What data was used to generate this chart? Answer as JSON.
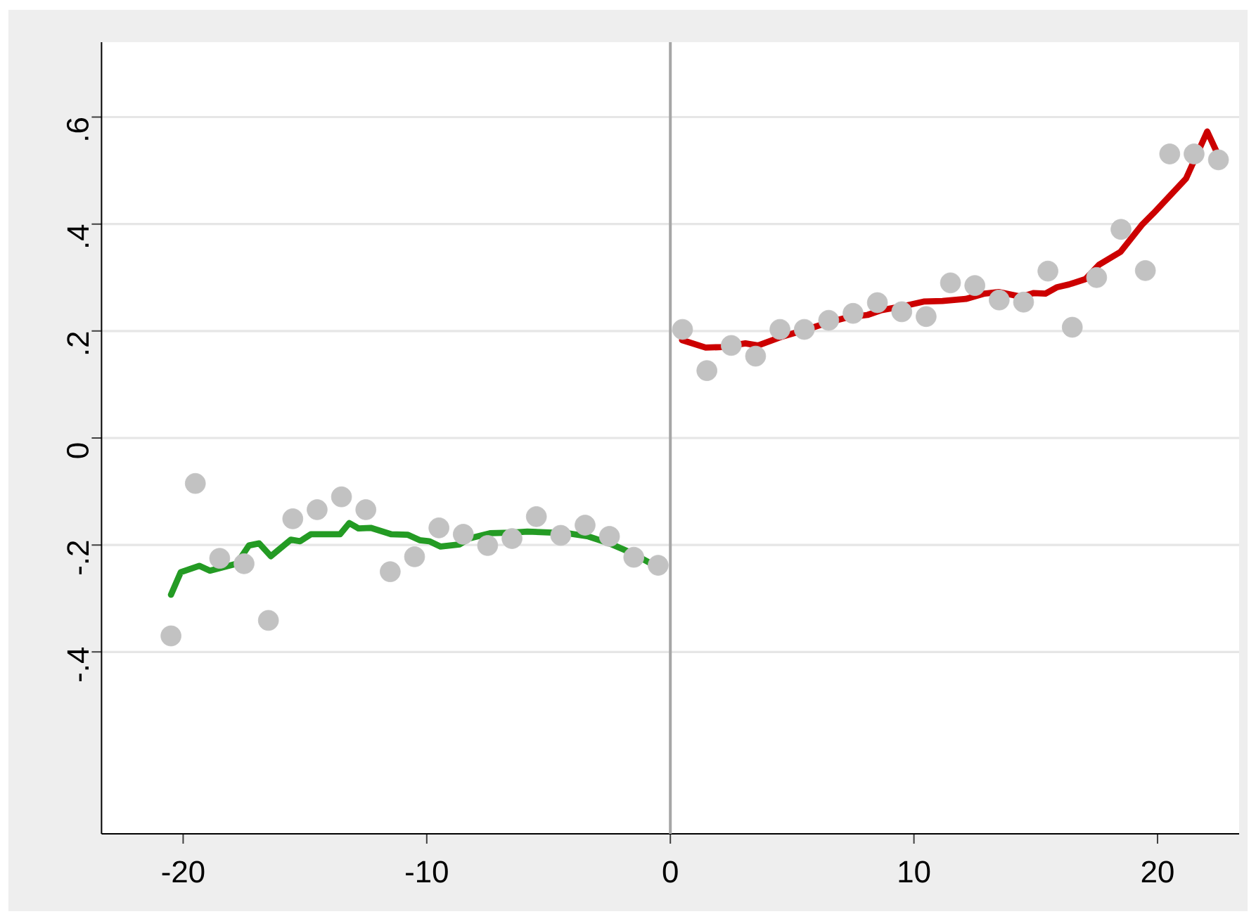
{
  "chart_data": {
    "type": "scatter",
    "xlim": [
      -23.35,
      23.35
    ],
    "ylim": [
      -0.74,
      0.74
    ],
    "xticks": [
      -20,
      -10,
      0,
      10,
      20
    ],
    "yticks": [
      {
        "value": -0.4,
        "label": "-.4"
      },
      {
        "value": -0.2,
        "label": "-.2"
      },
      0,
      {
        "value": 0.2,
        "label": ".2"
      },
      {
        "value": 0.4,
        "label": ".4"
      },
      {
        "value": 0.6,
        "label": ".6"
      }
    ],
    "grid": "y",
    "ref_lines": [
      {
        "axis": "x",
        "value": 0,
        "color": "#a6a6a6"
      }
    ],
    "series": [
      {
        "marker": "circle",
        "color": "#c2c2c2",
        "x": [
          -20.5,
          -19.5,
          -18.5,
          -17.5,
          -16.5,
          -15.5,
          -14.5,
          -13.5,
          -12.5,
          -11.5,
          -10.5,
          -9.5,
          -8.5,
          -7.5,
          -6.5,
          -5.5,
          -4.5,
          -3.5,
          -2.5,
          -1.5,
          -0.5,
          0.5,
          1.5,
          2.5,
          3.5,
          4.5,
          5.5,
          6.5,
          7.5,
          8.5,
          9.5,
          10.5,
          11.5,
          12.5,
          13.5,
          14.5,
          15.5,
          16.5,
          17.5,
          18.5,
          19.5,
          20.5,
          21.5,
          22.5
        ],
        "values": [
          -0.37,
          -0.085,
          -0.225,
          -0.235,
          -0.341,
          -0.151,
          -0.134,
          -0.11,
          -0.134,
          -0.25,
          -0.222,
          -0.168,
          -0.18,
          -0.201,
          -0.188,
          -0.147,
          -0.182,
          -0.163,
          -0.184,
          -0.223,
          -0.238,
          0.203,
          0.126,
          0.173,
          0.153,
          0.203,
          0.203,
          0.22,
          0.233,
          0.253,
          0.236,
          0.227,
          0.29,
          0.285,
          0.258,
          0.254,
          0.312,
          0.207,
          0.3,
          0.39,
          0.313,
          0.531,
          0.531,
          0.52
        ]
      },
      {
        "type": "line",
        "color": "#249b24",
        "x": [
          -20.5,
          -20.1,
          -19.34,
          -18.9,
          -17.8,
          -17.3,
          -16.88,
          -16.4,
          -15.58,
          -15.2,
          -14.76,
          -13.56,
          -13.18,
          -12.8,
          -12.3,
          -11.45,
          -10.77,
          -10.29,
          -9.9,
          -9.43,
          -8.65,
          -8.27,
          -7.4,
          -6.54,
          -5.87,
          -4.81,
          -4.23,
          -3.37,
          -2.5,
          -1.54,
          -0.54
        ],
        "values": [
          -0.293,
          -0.251,
          -0.239,
          -0.248,
          -0.235,
          -0.201,
          -0.197,
          -0.221,
          -0.19,
          -0.193,
          -0.18,
          -0.18,
          -0.159,
          -0.169,
          -0.168,
          -0.18,
          -0.181,
          -0.191,
          -0.193,
          -0.203,
          -0.199,
          -0.188,
          -0.178,
          -0.177,
          -0.175,
          -0.177,
          -0.178,
          -0.184,
          -0.197,
          -0.216,
          -0.241
        ]
      },
      {
        "type": "line",
        "color": "#cc0000",
        "x": [
          0.48,
          1.45,
          2.12,
          3.08,
          3.6,
          4.62,
          5.68,
          6.55,
          7.32,
          8.09,
          8.67,
          9.63,
          10.4,
          11.17,
          12.13,
          12.9,
          13.48,
          14.4,
          14.92,
          15.4,
          15.88,
          16.36,
          17.04,
          17.6,
          18.48,
          19.35,
          19.83,
          21.17,
          22.04,
          22.56
        ],
        "values": [
          0.183,
          0.169,
          0.17,
          0.177,
          0.173,
          0.19,
          0.204,
          0.217,
          0.226,
          0.23,
          0.239,
          0.247,
          0.255,
          0.256,
          0.26,
          0.27,
          0.273,
          0.264,
          0.271,
          0.27,
          0.282,
          0.287,
          0.297,
          0.324,
          0.348,
          0.398,
          0.42,
          0.485,
          0.573,
          0.522
        ]
      }
    ]
  }
}
